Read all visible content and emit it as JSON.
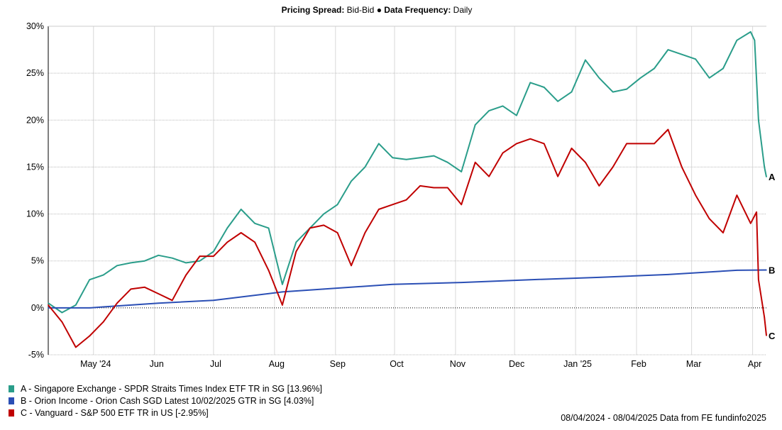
{
  "header": {
    "spread_label": "Pricing Spread:",
    "spread_value": "Bid-Bid",
    "separator": "●",
    "freq_label": "Data Frequency:",
    "freq_value": "Daily"
  },
  "footer": "08/04/2024 - 08/04/2025 Data from FE fundinfo2025",
  "chart_data": {
    "type": "line",
    "title": "",
    "xlabel": "",
    "ylabel": "",
    "ylim": [
      -5,
      30
    ],
    "xlim": [
      "2024-04-08",
      "2025-04-08"
    ],
    "yticks": [
      "-5%",
      "0%",
      "5%",
      "10%",
      "15%",
      "20%",
      "25%",
      "30%"
    ],
    "ytick_values": [
      -5,
      0,
      5,
      10,
      15,
      20,
      25,
      30
    ],
    "xticks": [
      {
        "date": "2024-05-01",
        "label": "May '24"
      },
      {
        "date": "2024-06-01",
        "label": "Jun"
      },
      {
        "date": "2024-07-01",
        "label": "Jul"
      },
      {
        "date": "2024-08-01",
        "label": "Aug"
      },
      {
        "date": "2024-09-01",
        "label": "Sep"
      },
      {
        "date": "2024-10-01",
        "label": "Oct"
      },
      {
        "date": "2024-11-01",
        "label": "Nov"
      },
      {
        "date": "2024-12-01",
        "label": "Dec"
      },
      {
        "date": "2025-01-01",
        "label": "Jan '25"
      },
      {
        "date": "2025-02-01",
        "label": "Feb"
      },
      {
        "date": "2025-03-01",
        "label": "Mar"
      },
      {
        "date": "2025-04-01",
        "label": "Apr"
      }
    ],
    "grid": true,
    "legend_position": "bottom-left",
    "series": [
      {
        "key": "A",
        "name": "A - Singapore Exchange - SPDR Straits Times Index ETF TR in SG [13.96%]",
        "color": "#2a9d8a",
        "x": [
          "2024-04-08",
          "2024-04-15",
          "2024-04-22",
          "2024-04-29",
          "2024-05-06",
          "2024-05-13",
          "2024-05-20",
          "2024-05-27",
          "2024-06-03",
          "2024-06-10",
          "2024-06-17",
          "2024-06-24",
          "2024-07-01",
          "2024-07-08",
          "2024-07-15",
          "2024-07-22",
          "2024-07-29",
          "2024-08-05",
          "2024-08-12",
          "2024-08-19",
          "2024-08-26",
          "2024-09-02",
          "2024-09-09",
          "2024-09-16",
          "2024-09-23",
          "2024-09-30",
          "2024-10-07",
          "2024-10-14",
          "2024-10-21",
          "2024-10-28",
          "2024-11-04",
          "2024-11-11",
          "2024-11-18",
          "2024-11-25",
          "2024-12-02",
          "2024-12-09",
          "2024-12-16",
          "2024-12-23",
          "2024-12-30",
          "2025-01-06",
          "2025-01-13",
          "2025-01-20",
          "2025-01-27",
          "2025-02-03",
          "2025-02-10",
          "2025-02-17",
          "2025-02-24",
          "2025-03-03",
          "2025-03-10",
          "2025-03-17",
          "2025-03-24",
          "2025-03-31",
          "2025-04-02",
          "2025-04-04",
          "2025-04-07",
          "2025-04-08"
        ],
        "y": [
          0.5,
          -0.5,
          0.3,
          3.0,
          3.5,
          4.5,
          4.8,
          5.0,
          5.6,
          5.3,
          4.8,
          5.0,
          6.0,
          8.5,
          10.5,
          9.0,
          8.5,
          2.5,
          7.0,
          8.5,
          10.0,
          11.0,
          13.5,
          15.0,
          17.5,
          16.0,
          15.8,
          16.0,
          16.2,
          15.5,
          14.5,
          19.5,
          21.0,
          21.5,
          20.5,
          24.0,
          23.5,
          22.0,
          23.0,
          26.4,
          24.5,
          23.0,
          23.3,
          24.5,
          25.5,
          27.5,
          27.0,
          26.5,
          24.5,
          25.5,
          28.5,
          29.4,
          28.5,
          20.0,
          15.0,
          13.96
        ]
      },
      {
        "key": "B",
        "name": "B - Orion Income - Orion Cash SGD Latest 10/02/2025 GTR in SG [4.03%]",
        "color": "#2b4fb5",
        "x": [
          "2024-04-08",
          "2024-04-29",
          "2024-05-06",
          "2024-05-20",
          "2024-06-03",
          "2024-07-01",
          "2024-08-05",
          "2024-08-26",
          "2024-09-30",
          "2024-11-04",
          "2024-12-09",
          "2025-01-13",
          "2025-02-17",
          "2025-03-24",
          "2025-04-08"
        ],
        "y": [
          0,
          0,
          0.1,
          0.3,
          0.5,
          0.8,
          1.7,
          2.0,
          2.5,
          2.7,
          3.0,
          3.25,
          3.55,
          4.0,
          4.03
        ]
      },
      {
        "key": "C",
        "name": "C - Vanguard - S&P 500 ETF TR in US [-2.95%]",
        "color": "#c00000",
        "x": [
          "2024-04-08",
          "2024-04-15",
          "2024-04-22",
          "2024-04-29",
          "2024-05-06",
          "2024-05-13",
          "2024-05-20",
          "2024-05-27",
          "2024-06-03",
          "2024-06-10",
          "2024-06-17",
          "2024-06-24",
          "2024-07-01",
          "2024-07-08",
          "2024-07-15",
          "2024-07-22",
          "2024-07-29",
          "2024-08-05",
          "2024-08-12",
          "2024-08-19",
          "2024-08-26",
          "2024-09-02",
          "2024-09-09",
          "2024-09-16",
          "2024-09-23",
          "2024-09-30",
          "2024-10-07",
          "2024-10-14",
          "2024-10-21",
          "2024-10-28",
          "2024-11-04",
          "2024-11-11",
          "2024-11-18",
          "2024-11-25",
          "2024-12-02",
          "2024-12-09",
          "2024-12-16",
          "2024-12-23",
          "2024-12-30",
          "2025-01-06",
          "2025-01-13",
          "2025-01-20",
          "2025-01-27",
          "2025-02-03",
          "2025-02-10",
          "2025-02-17",
          "2025-02-24",
          "2025-03-03",
          "2025-03-10",
          "2025-03-17",
          "2025-03-24",
          "2025-03-31",
          "2025-04-03",
          "2025-04-04",
          "2025-04-07",
          "2025-04-08"
        ],
        "y": [
          0.3,
          -1.5,
          -4.2,
          -3.0,
          -1.5,
          0.5,
          2.0,
          2.2,
          1.5,
          0.8,
          3.5,
          5.5,
          5.5,
          7.0,
          8.0,
          7.0,
          4.0,
          0.3,
          6.0,
          8.5,
          8.8,
          8.0,
          4.5,
          8.0,
          10.5,
          11.0,
          11.5,
          13.0,
          12.8,
          12.8,
          11.0,
          15.5,
          14.0,
          16.5,
          17.5,
          18.0,
          17.5,
          14.0,
          17.0,
          15.5,
          13.0,
          15.0,
          17.5,
          17.5,
          17.5,
          19.0,
          15.0,
          12.0,
          9.5,
          8.0,
          12.0,
          9.0,
          10.2,
          3.0,
          -1.0,
          -2.95
        ]
      }
    ]
  }
}
